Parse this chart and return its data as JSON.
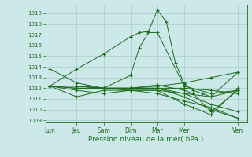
{
  "bg_color": "#cce8e8",
  "grid_color": "#aacccc",
  "line_color": "#1a6b1a",
  "marker_color": "#1a6b1a",
  "xlabel": "Pression niveau de la mer( hPa )",
  "ylim": [
    1008.8,
    1019.8
  ],
  "yticks": [
    1009,
    1010,
    1011,
    1012,
    1013,
    1014,
    1015,
    1016,
    1017,
    1018,
    1019
  ],
  "xtick_labels": [
    "Lun",
    "Jeu",
    "Sam",
    "Dim",
    "Mar",
    "Mer",
    "Ven"
  ],
  "xtick_positions": [
    0,
    3,
    6,
    9,
    12,
    15,
    21
  ],
  "xlim": [
    -0.5,
    22
  ],
  "series": [
    {
      "x": [
        0,
        3,
        6,
        9,
        10,
        11,
        12,
        13,
        14,
        15,
        16,
        17,
        18,
        21
      ],
      "y": [
        1012.2,
        1013.8,
        1015.2,
        1016.8,
        1017.2,
        1017.3,
        1019.3,
        1018.2,
        1014.4,
        1012.4,
        1011.8,
        1011.5,
        1011.2,
        1013.5
      ]
    },
    {
      "x": [
        0,
        3,
        6,
        9,
        12,
        15,
        18,
        21
      ],
      "y": [
        1012.2,
        1012.0,
        1012.0,
        1011.8,
        1011.5,
        1010.8,
        1010.2,
        1009.2
      ]
    },
    {
      "x": [
        0,
        3,
        6,
        9,
        12,
        15,
        18,
        21
      ],
      "y": [
        1012.2,
        1012.2,
        1012.0,
        1012.0,
        1012.2,
        1012.5,
        1013.0,
        1013.5
      ]
    },
    {
      "x": [
        0,
        3,
        6,
        9,
        12,
        15,
        18,
        21
      ],
      "y": [
        1012.2,
        1011.2,
        1011.8,
        1011.8,
        1011.8,
        1011.5,
        1011.2,
        1011.8
      ]
    },
    {
      "x": [
        0,
        3,
        6,
        9,
        12,
        15,
        18,
        21
      ],
      "y": [
        1012.2,
        1012.0,
        1012.0,
        1012.0,
        1012.0,
        1011.2,
        1010.0,
        1009.2
      ]
    },
    {
      "x": [
        0,
        3,
        6,
        9,
        10,
        11,
        12,
        15,
        18,
        21
      ],
      "y": [
        1012.2,
        1012.2,
        1012.0,
        1013.2,
        1015.8,
        1017.2,
        1017.2,
        1012.2,
        1011.5,
        1011.8
      ]
    },
    {
      "x": [
        0,
        3,
        6,
        9,
        12,
        15,
        18,
        21
      ],
      "y": [
        1012.2,
        1012.2,
        1012.0,
        1012.0,
        1012.0,
        1012.0,
        1011.8,
        1011.5
      ]
    },
    {
      "x": [
        0,
        3,
        6,
        9,
        12,
        15,
        18,
        21
      ],
      "y": [
        1013.8,
        1012.5,
        1012.0,
        1012.0,
        1012.0,
        1011.5,
        1010.5,
        1009.8
      ]
    },
    {
      "x": [
        0,
        3,
        6,
        9,
        12,
        15,
        16,
        18,
        21
      ],
      "y": [
        1012.2,
        1012.2,
        1012.0,
        1012.0,
        1012.3,
        1011.8,
        1011.5,
        1009.8,
        1011.8
      ]
    },
    {
      "x": [
        0,
        3,
        6,
        9,
        12,
        15,
        16,
        18,
        21
      ],
      "y": [
        1012.2,
        1011.8,
        1011.5,
        1011.8,
        1011.8,
        1010.5,
        1010.2,
        1009.5,
        1012.0
      ]
    }
  ]
}
